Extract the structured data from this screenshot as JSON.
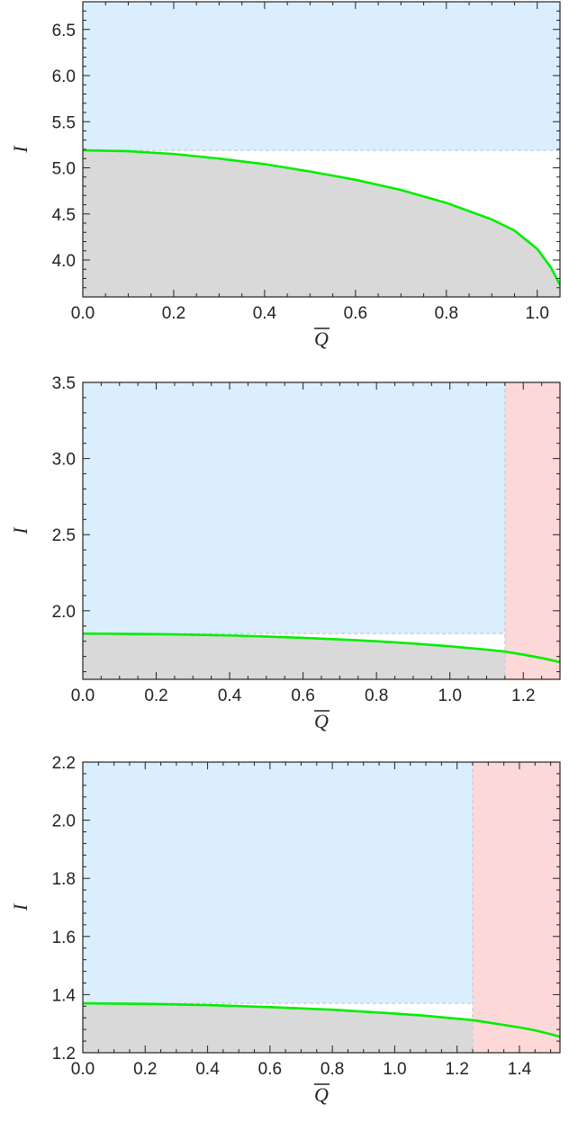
{
  "chart_data": [
    {
      "type": "area",
      "xlabel": "Q",
      "ylabel": "I",
      "xlim": [
        0.0,
        1.05
      ],
      "ylim": [
        3.6,
        6.8
      ],
      "x_ticks": [
        "0.0",
        "0.2",
        "0.4",
        "0.6",
        "0.8",
        "1.0"
      ],
      "x_tick_values": [
        0.0,
        0.2,
        0.4,
        0.6,
        0.8,
        1.0
      ],
      "y_ticks": [
        "4.0",
        "4.5",
        "5.0",
        "5.5",
        "6.0",
        "6.5"
      ],
      "y_tick_values": [
        4.0,
        4.5,
        5.0,
        5.5,
        6.0,
        6.5
      ],
      "regions": {
        "blue_y_min": 5.19,
        "pink_x_min": null
      },
      "series": [
        {
          "x": [
            0.0,
            0.1,
            0.2,
            0.3,
            0.4,
            0.5,
            0.6,
            0.7,
            0.8,
            0.9,
            0.95,
            1.0,
            1.03,
            1.05
          ],
          "y": [
            5.19,
            5.18,
            5.15,
            5.1,
            5.04,
            4.96,
            4.87,
            4.76,
            4.62,
            4.44,
            4.32,
            4.12,
            3.92,
            3.73
          ]
        }
      ],
      "colors": {
        "blue": "#dbeefd",
        "gray": "#d9d9d9",
        "pink": "#fdd8d9",
        "curve": "#00ee00"
      }
    },
    {
      "type": "area",
      "xlabel": "Q",
      "ylabel": "I",
      "xlim": [
        0.0,
        1.3
      ],
      "ylim": [
        1.55,
        3.5
      ],
      "x_ticks": [
        "0.0",
        "0.2",
        "0.4",
        "0.6",
        "0.8",
        "1.0",
        "1.2"
      ],
      "x_tick_values": [
        0.0,
        0.2,
        0.4,
        0.6,
        0.8,
        1.0,
        1.2
      ],
      "y_ticks": [
        "2.0",
        "2.5",
        "3.0",
        "3.5"
      ],
      "y_tick_values": [
        2.0,
        2.5,
        3.0,
        3.5
      ],
      "regions": {
        "blue_y_min": 1.85,
        "pink_x_min": 1.15
      },
      "series": [
        {
          "x": [
            0.0,
            0.1,
            0.2,
            0.3,
            0.4,
            0.5,
            0.6,
            0.7,
            0.8,
            0.9,
            1.0,
            1.1,
            1.15,
            1.2,
            1.25,
            1.3
          ],
          "y": [
            1.85,
            1.849,
            1.847,
            1.843,
            1.838,
            1.831,
            1.822,
            1.812,
            1.8,
            1.785,
            1.767,
            1.745,
            1.732,
            1.712,
            1.69,
            1.663
          ]
        }
      ],
      "colors": {
        "blue": "#dbeefd",
        "gray": "#d9d9d9",
        "pink": "#fdd8d9",
        "curve": "#00ee00"
      }
    },
    {
      "type": "area",
      "xlabel": "Q",
      "ylabel": "I",
      "xlim": [
        0.0,
        1.53
      ],
      "ylim": [
        1.2,
        2.2
      ],
      "x_ticks": [
        "0.0",
        "0.2",
        "0.4",
        "0.6",
        "0.8",
        "1.0",
        "1.2",
        "1.4"
      ],
      "x_tick_values": [
        0.0,
        0.2,
        0.4,
        0.6,
        0.8,
        1.0,
        1.2,
        1.4
      ],
      "y_ticks": [
        "1.2",
        "1.4",
        "1.6",
        "1.8",
        "2.0",
        "2.2"
      ],
      "y_tick_values": [
        1.2,
        1.4,
        1.6,
        1.8,
        2.0,
        2.2
      ],
      "regions": {
        "blue_y_min": 1.37,
        "pink_x_min": 1.25
      },
      "series": [
        {
          "x": [
            0.0,
            0.2,
            0.4,
            0.6,
            0.8,
            1.0,
            1.1,
            1.2,
            1.25,
            1.3,
            1.4,
            1.45,
            1.5,
            1.53
          ],
          "y": [
            1.37,
            1.368,
            1.364,
            1.357,
            1.348,
            1.335,
            1.327,
            1.317,
            1.312,
            1.304,
            1.287,
            1.277,
            1.264,
            1.255
          ]
        }
      ],
      "colors": {
        "blue": "#dbeefd",
        "gray": "#d9d9d9",
        "pink": "#fdd8d9",
        "curve": "#00ee00"
      }
    }
  ]
}
